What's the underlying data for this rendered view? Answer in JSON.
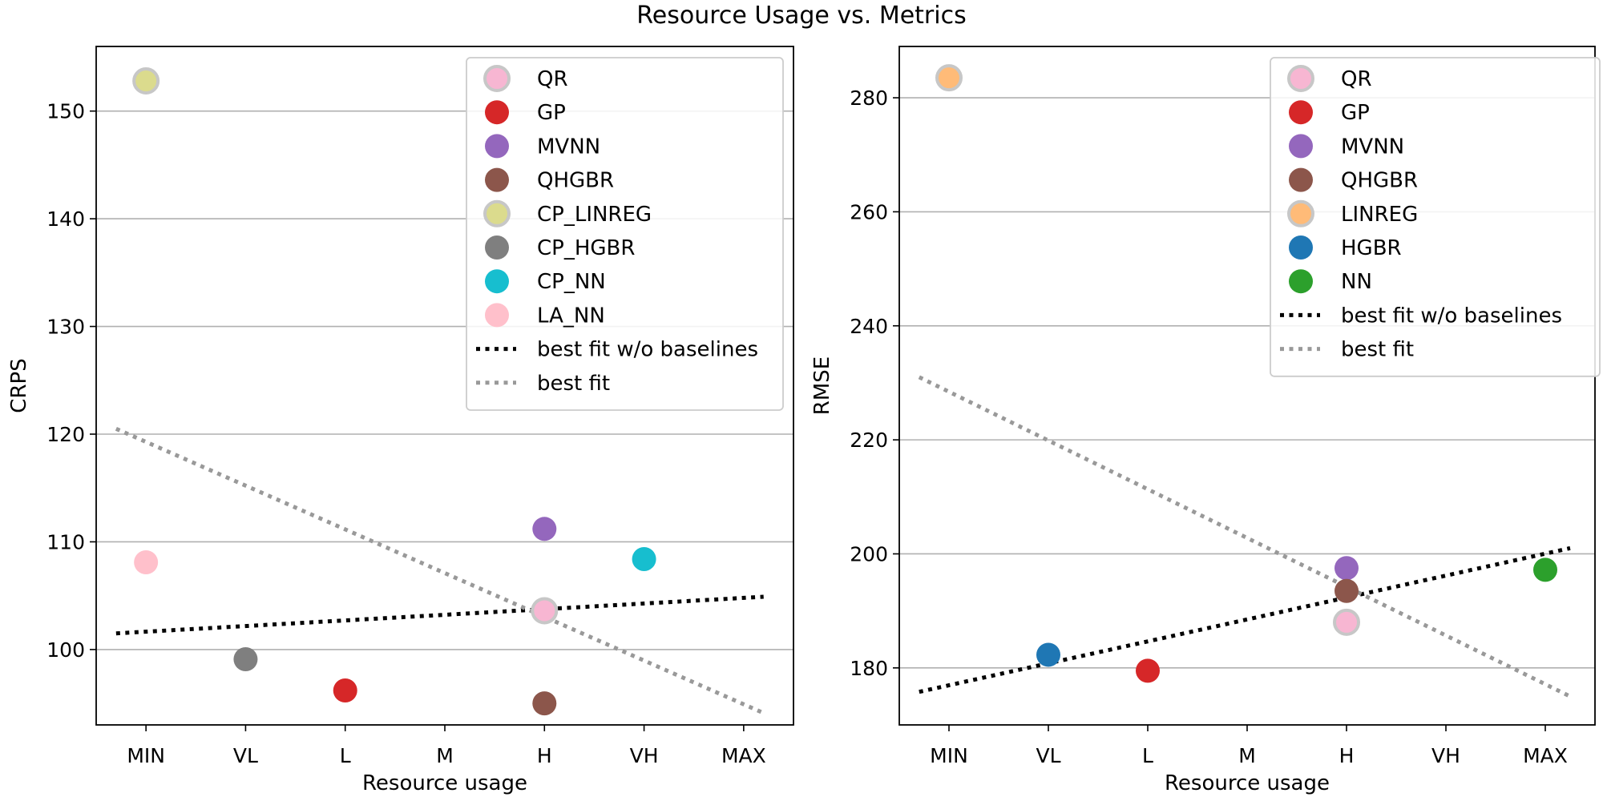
{
  "suptitle": "Resource Usage vs. Metrics",
  "chart_data": [
    {
      "type": "scatter",
      "xlabel": "Resource usage",
      "ylabel": "CRPS",
      "categories": [
        "MIN",
        "VL",
        "L",
        "M",
        "H",
        "VH",
        "MAX"
      ],
      "ylim": [
        93,
        156
      ],
      "yticks": [
        100,
        110,
        120,
        130,
        140,
        150
      ],
      "grid": "y",
      "legend_position": "top-right",
      "series": [
        {
          "name": "QR",
          "color": "#f7b6d2",
          "edge": "#c7c7c7",
          "points": [
            {
              "x": "H",
              "y": 103.6
            }
          ]
        },
        {
          "name": "GP",
          "color": "#d62728",
          "points": [
            {
              "x": "L",
              "y": 96.2
            }
          ]
        },
        {
          "name": "MVNN",
          "color": "#9467bd",
          "points": [
            {
              "x": "H",
              "y": 111.2
            }
          ]
        },
        {
          "name": "QHGBR",
          "color": "#8c564b",
          "points": [
            {
              "x": "H",
              "y": 95.0
            }
          ]
        },
        {
          "name": "CP_LINREG",
          "color": "#dbdb8d",
          "edge": "#c7c7c7",
          "points": [
            {
              "x": "MIN",
              "y": 152.8
            }
          ]
        },
        {
          "name": "CP_HGBR",
          "color": "#7f7f7f",
          "points": [
            {
              "x": "VL",
              "y": 99.1
            }
          ]
        },
        {
          "name": "CP_NN",
          "color": "#17becf",
          "points": [
            {
              "x": "VH",
              "y": 108.4
            }
          ]
        },
        {
          "name": "LA_NN",
          "color": "#ffc0cb",
          "points": [
            {
              "x": "MIN",
              "y": 108.1
            }
          ]
        }
      ],
      "lines": [
        {
          "name": "best fit w/o baselines",
          "color": "#000000",
          "points": [
            [
              -0.3,
              101.5
            ],
            [
              6.2,
              104.9
            ]
          ]
        },
        {
          "name": "best fit",
          "color": "#999999",
          "points": [
            [
              -0.3,
              120.5
            ],
            [
              6.2,
              94.1
            ]
          ]
        }
      ]
    },
    {
      "type": "scatter",
      "xlabel": "Resource usage",
      "ylabel": "RMSE",
      "categories": [
        "MIN",
        "VL",
        "L",
        "M",
        "H",
        "VH",
        "MAX"
      ],
      "ylim": [
        170,
        289
      ],
      "yticks": [
        180,
        200,
        220,
        240,
        260,
        280
      ],
      "grid": "y",
      "legend_position": "top-right",
      "series": [
        {
          "name": "QR",
          "color": "#f7b6d2",
          "edge": "#c7c7c7",
          "points": [
            {
              "x": "H",
              "y": 188.0
            }
          ]
        },
        {
          "name": "GP",
          "color": "#d62728",
          "points": [
            {
              "x": "L",
              "y": 179.5
            }
          ]
        },
        {
          "name": "MVNN",
          "color": "#9467bd",
          "points": [
            {
              "x": "H",
              "y": 197.5
            }
          ]
        },
        {
          "name": "QHGBR",
          "color": "#8c564b",
          "points": [
            {
              "x": "H",
              "y": 193.5
            }
          ]
        },
        {
          "name": "LINREG",
          "color": "#ffbb78",
          "edge": "#c7c7c7",
          "points": [
            {
              "x": "MIN",
              "y": 283.5
            }
          ]
        },
        {
          "name": "HGBR",
          "color": "#1f77b4",
          "points": [
            {
              "x": "VL",
              "y": 182.3
            }
          ]
        },
        {
          "name": "NN",
          "color": "#2ca02c",
          "points": [
            {
              "x": "MAX",
              "y": 197.2
            }
          ]
        }
      ],
      "lines": [
        {
          "name": "best fit w/o baselines",
          "color": "#000000",
          "points": [
            [
              -0.3,
              175.8
            ],
            [
              6.25,
              201.0
            ]
          ]
        },
        {
          "name": "best fit",
          "color": "#999999",
          "points": [
            [
              -0.3,
              231.0
            ],
            [
              6.25,
              175.0
            ]
          ]
        }
      ]
    }
  ]
}
